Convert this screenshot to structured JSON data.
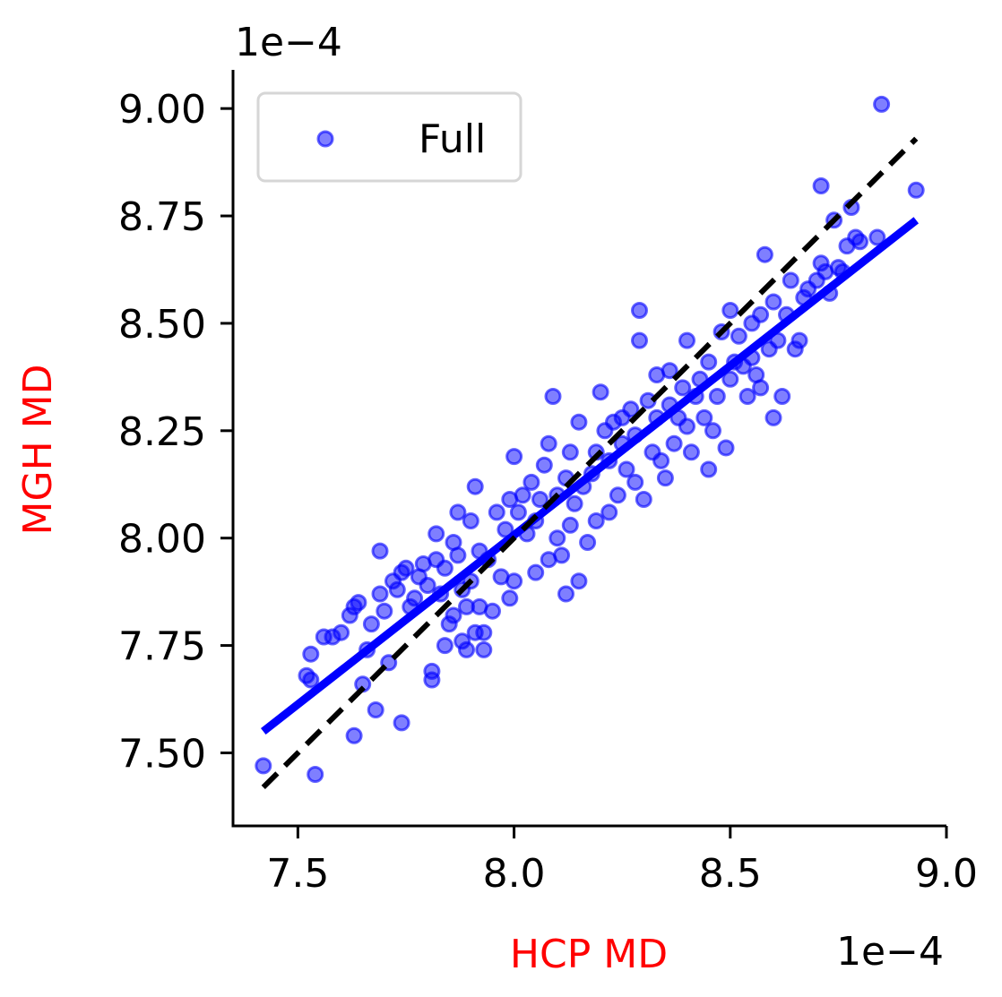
{
  "chart_data": {
    "type": "scatter",
    "title": "",
    "xlabel": "HCP MD",
    "ylabel": "MGH MD",
    "x_offset_text": "1e−4",
    "y_offset_text": "1e−4",
    "xlim": [
      7.35,
      9.0
    ],
    "ylim": [
      7.33,
      9.09
    ],
    "x_ticks": [
      7.5,
      8.0,
      8.5,
      9.0
    ],
    "x_tick_labels": [
      "7.5",
      "8.0",
      "8.5",
      "9.0"
    ],
    "y_ticks": [
      7.5,
      7.75,
      8.0,
      8.25,
      8.5,
      8.75,
      9.0
    ],
    "y_tick_labels": [
      "7.50",
      "7.75",
      "8.00",
      "8.25",
      "8.50",
      "8.75",
      "9.00"
    ],
    "grid": false,
    "legend": {
      "placement": "top-left",
      "entries": [
        "Full"
      ]
    },
    "colors": {
      "points": "#0000ff",
      "fit_line": "#0000ff",
      "identity_line": "#000000",
      "axis_labels": "#ff0000"
    },
    "series": [
      {
        "name": "Full",
        "points": [
          [
            7.42,
            7.47
          ],
          [
            7.54,
            7.45
          ],
          [
            7.53,
            7.73
          ],
          [
            7.52,
            7.68
          ],
          [
            7.53,
            7.67
          ],
          [
            7.56,
            7.77
          ],
          [
            7.58,
            7.77
          ],
          [
            7.6,
            7.78
          ],
          [
            7.62,
            7.82
          ],
          [
            7.63,
            7.54
          ],
          [
            7.63,
            7.84
          ],
          [
            7.64,
            7.85
          ],
          [
            7.65,
            7.66
          ],
          [
            7.66,
            7.74
          ],
          [
            7.67,
            7.8
          ],
          [
            7.68,
            7.6
          ],
          [
            7.69,
            7.97
          ],
          [
            7.69,
            7.87
          ],
          [
            7.7,
            7.83
          ],
          [
            7.71,
            7.71
          ],
          [
            7.72,
            7.9
          ],
          [
            7.73,
            7.88
          ],
          [
            7.74,
            7.57
          ],
          [
            7.74,
            7.92
          ],
          [
            7.75,
            7.93
          ],
          [
            7.76,
            7.84
          ],
          [
            7.77,
            7.86
          ],
          [
            7.78,
            7.91
          ],
          [
            7.79,
            7.94
          ],
          [
            7.8,
            7.89
          ],
          [
            7.81,
            7.67
          ],
          [
            7.81,
            7.69
          ],
          [
            7.82,
            7.95
          ],
          [
            7.82,
            8.01
          ],
          [
            7.83,
            7.87
          ],
          [
            7.84,
            7.93
          ],
          [
            7.84,
            7.75
          ],
          [
            7.85,
            7.8
          ],
          [
            7.86,
            7.82
          ],
          [
            7.86,
            7.99
          ],
          [
            7.87,
            7.96
          ],
          [
            7.87,
            8.06
          ],
          [
            7.88,
            7.76
          ],
          [
            7.88,
            7.88
          ],
          [
            7.89,
            7.74
          ],
          [
            7.89,
            7.84
          ],
          [
            7.9,
            8.04
          ],
          [
            7.9,
            7.9
          ],
          [
            7.91,
            8.12
          ],
          [
            7.91,
            7.78
          ],
          [
            7.92,
            7.84
          ],
          [
            7.92,
            7.97
          ],
          [
            7.93,
            7.74
          ],
          [
            7.93,
            7.78
          ],
          [
            7.94,
            7.95
          ],
          [
            7.95,
            7.83
          ],
          [
            7.96,
            8.06
          ],
          [
            7.97,
            7.91
          ],
          [
            7.98,
            8.02
          ],
          [
            7.99,
            8.09
          ],
          [
            7.99,
            7.86
          ],
          [
            8.0,
            8.19
          ],
          [
            8.0,
            7.9
          ],
          [
            8.01,
            8.06
          ],
          [
            8.02,
            8.1
          ],
          [
            8.03,
            8.01
          ],
          [
            8.04,
            8.13
          ],
          [
            8.05,
            8.04
          ],
          [
            8.05,
            7.92
          ],
          [
            8.06,
            8.09
          ],
          [
            8.07,
            8.17
          ],
          [
            8.08,
            8.22
          ],
          [
            8.08,
            7.95
          ],
          [
            8.09,
            8.33
          ],
          [
            8.1,
            8.1
          ],
          [
            8.1,
            8.0
          ],
          [
            8.11,
            7.96
          ],
          [
            8.12,
            8.14
          ],
          [
            8.12,
            7.87
          ],
          [
            8.13,
            8.2
          ],
          [
            8.13,
            8.03
          ],
          [
            8.14,
            8.08
          ],
          [
            8.15,
            8.27
          ],
          [
            8.15,
            7.9
          ],
          [
            8.16,
            8.12
          ],
          [
            8.17,
            7.99
          ],
          [
            8.18,
            8.15
          ],
          [
            8.19,
            8.2
          ],
          [
            8.19,
            8.04
          ],
          [
            8.2,
            8.34
          ],
          [
            8.21,
            8.25
          ],
          [
            8.22,
            8.06
          ],
          [
            8.22,
            8.18
          ],
          [
            8.23,
            8.27
          ],
          [
            8.24,
            8.1
          ],
          [
            8.25,
            8.22
          ],
          [
            8.25,
            8.28
          ],
          [
            8.26,
            8.16
          ],
          [
            8.27,
            8.3
          ],
          [
            8.28,
            8.24
          ],
          [
            8.28,
            8.13
          ],
          [
            8.29,
            8.46
          ],
          [
            8.29,
            8.53
          ],
          [
            8.3,
            8.09
          ],
          [
            8.31,
            8.32
          ],
          [
            8.32,
            8.2
          ],
          [
            8.33,
            8.38
          ],
          [
            8.33,
            8.28
          ],
          [
            8.34,
            8.18
          ],
          [
            8.35,
            8.14
          ],
          [
            8.36,
            8.31
          ],
          [
            8.36,
            8.39
          ],
          [
            8.37,
            8.22
          ],
          [
            8.38,
            8.28
          ],
          [
            8.39,
            8.35
          ],
          [
            8.4,
            8.46
          ],
          [
            8.4,
            8.26
          ],
          [
            8.41,
            8.2
          ],
          [
            8.42,
            8.33
          ],
          [
            8.43,
            8.37
          ],
          [
            8.44,
            8.28
          ],
          [
            8.45,
            8.41
          ],
          [
            8.45,
            8.16
          ],
          [
            8.46,
            8.25
          ],
          [
            8.47,
            8.33
          ],
          [
            8.48,
            8.48
          ],
          [
            8.49,
            8.21
          ],
          [
            8.5,
            8.53
          ],
          [
            8.5,
            8.37
          ],
          [
            8.51,
            8.41
          ],
          [
            8.52,
            8.47
          ],
          [
            8.53,
            8.4
          ],
          [
            8.54,
            8.33
          ],
          [
            8.55,
            8.5
          ],
          [
            8.55,
            8.42
          ],
          [
            8.56,
            8.38
          ],
          [
            8.57,
            8.52
          ],
          [
            8.57,
            8.35
          ],
          [
            8.58,
            8.66
          ],
          [
            8.59,
            8.44
          ],
          [
            8.6,
            8.28
          ],
          [
            8.6,
            8.55
          ],
          [
            8.61,
            8.46
          ],
          [
            8.62,
            8.33
          ],
          [
            8.63,
            8.52
          ],
          [
            8.64,
            8.6
          ],
          [
            8.65,
            8.44
          ],
          [
            8.66,
            8.46
          ],
          [
            8.67,
            8.56
          ],
          [
            8.68,
            8.58
          ],
          [
            8.7,
            8.6
          ],
          [
            8.71,
            8.64
          ],
          [
            8.71,
            8.82
          ],
          [
            8.72,
            8.62
          ],
          [
            8.73,
            8.57
          ],
          [
            8.74,
            8.74
          ],
          [
            8.75,
            8.63
          ],
          [
            8.76,
            8.62
          ],
          [
            8.77,
            8.68
          ],
          [
            8.78,
            8.77
          ],
          [
            8.79,
            8.7
          ],
          [
            8.8,
            8.69
          ],
          [
            8.84,
            8.7
          ],
          [
            8.85,
            9.01
          ],
          [
            8.93,
            8.81
          ]
        ]
      }
    ],
    "fit_line": [
      [
        7.42,
        7.55
      ],
      [
        8.93,
        8.74
      ]
    ],
    "identity_line": [
      [
        7.42,
        7.42
      ],
      [
        8.93,
        8.93
      ]
    ]
  }
}
